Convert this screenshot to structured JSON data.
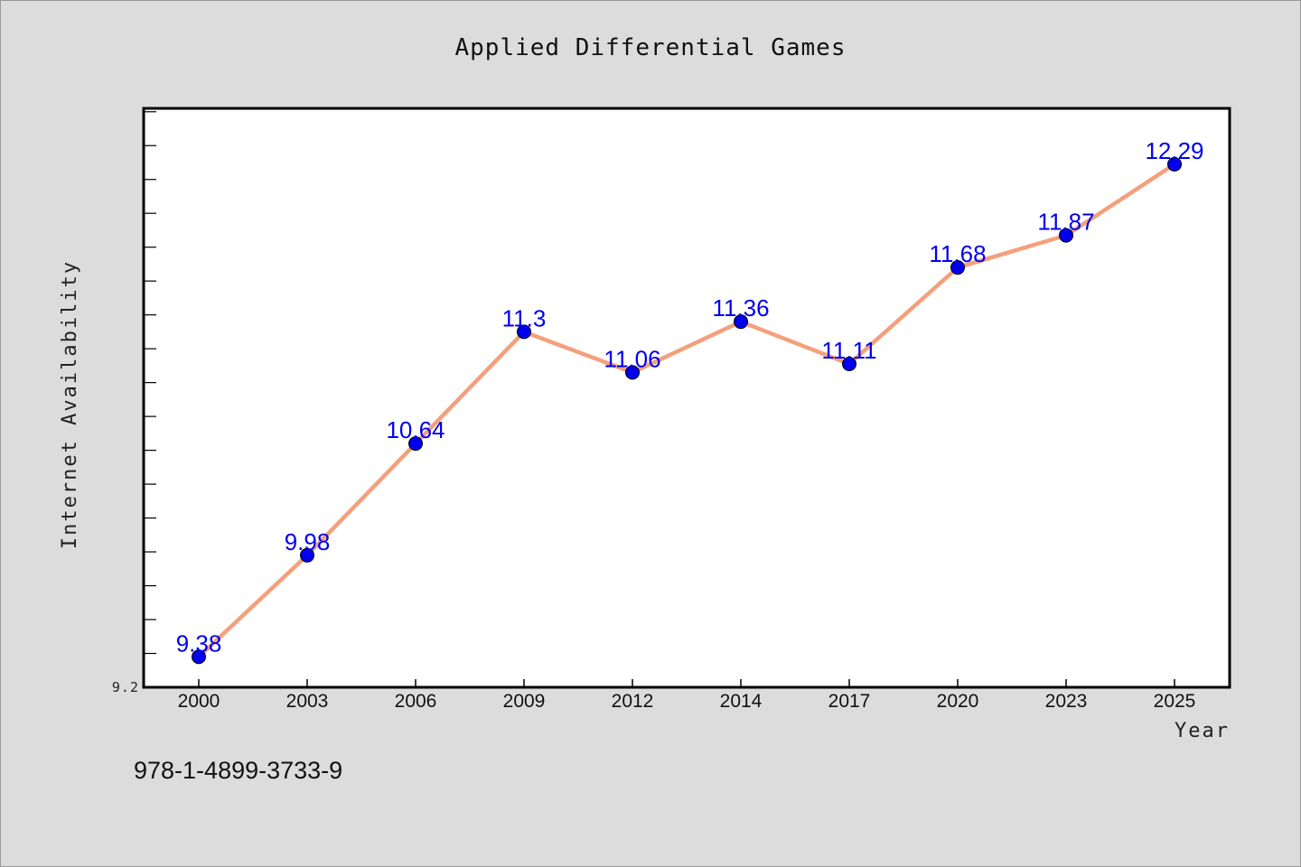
{
  "chart_data": {
    "type": "line",
    "title": "Applied Differential Games",
    "xlabel": "Year",
    "ylabel": "Internet Availability",
    "categories": [
      "2000",
      "2003",
      "2006",
      "2009",
      "2012",
      "2014",
      "2017",
      "2020",
      "2023",
      "2025"
    ],
    "series": [
      {
        "values": [
          9.38,
          9.98,
          10.64,
          11.3,
          11.06,
          11.36,
          11.11,
          11.68,
          11.87,
          12.29
        ],
        "color": "#f4a07c",
        "marker_color": "#0000ee"
      }
    ],
    "ylim": [
      9.2,
      12.62
    ],
    "y_tick_labels": [
      "9.2"
    ],
    "grid": false,
    "legend": "none"
  },
  "annotation": {
    "isbn": "978-1-4899-3733-9"
  },
  "colors": {
    "background": "#dcdcdc",
    "plot_background": "#ffffff",
    "line": "#f4a07c",
    "marker": "#0000ee",
    "data_label": "#0000ee"
  }
}
